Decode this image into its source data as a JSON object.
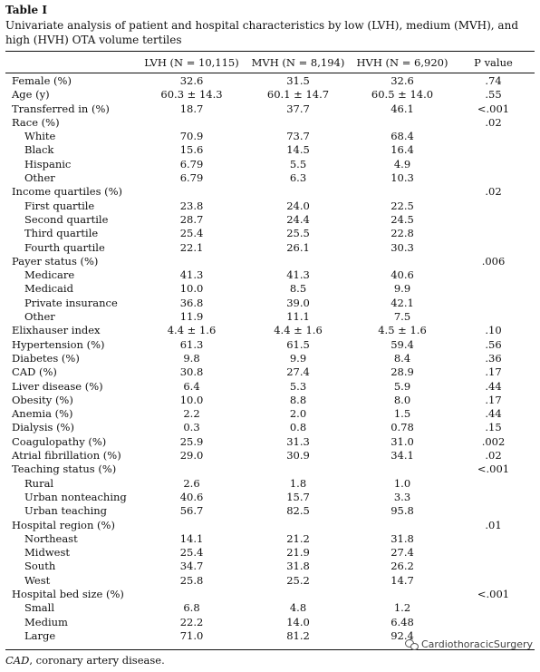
{
  "table_label": "Table I",
  "caption": "Univariate analysis of patient and hospital characteristics by low (LVH), medium (MVH), and high (HVH) OTA volume tertiles",
  "headers": {
    "c0": "",
    "c1": "LVH (N = 10,115)",
    "c2": "MVH (N = 8,194)",
    "c3": "HVH (N = 6,920)",
    "c4": "P value"
  },
  "rows": [
    {
      "label": "Female (%)",
      "lvh": "32.6",
      "mvh": "31.5",
      "hvh": "32.6",
      "p": ".74"
    },
    {
      "label": "Age (y)",
      "lvh": "60.3 ± 14.3",
      "mvh": "60.1 ± 14.7",
      "hvh": "60.5 ± 14.0",
      "p": ".55"
    },
    {
      "label": "Transferred in (%)",
      "lvh": "18.7",
      "mvh": "37.7",
      "hvh": "46.1",
      "p": "<.001"
    },
    {
      "label": "Race (%)",
      "lvh": "",
      "mvh": "",
      "hvh": "",
      "p": ".02"
    },
    {
      "label": "White",
      "lvh": "70.9",
      "mvh": "73.7",
      "hvh": "68.4",
      "p": "",
      "sub": true
    },
    {
      "label": "Black",
      "lvh": "15.6",
      "mvh": "14.5",
      "hvh": "16.4",
      "p": "",
      "sub": true
    },
    {
      "label": "Hispanic",
      "lvh": "6.79",
      "mvh": "5.5",
      "hvh": "4.9",
      "p": "",
      "sub": true
    },
    {
      "label": "Other",
      "lvh": "6.79",
      "mvh": "6.3",
      "hvh": "10.3",
      "p": "",
      "sub": true
    },
    {
      "label": "Income quartiles (%)",
      "lvh": "",
      "mvh": "",
      "hvh": "",
      "p": ".02"
    },
    {
      "label": "First quartile",
      "lvh": "23.8",
      "mvh": "24.0",
      "hvh": "22.5",
      "p": "",
      "sub": true
    },
    {
      "label": "Second quartile",
      "lvh": "28.7",
      "mvh": "24.4",
      "hvh": "24.5",
      "p": "",
      "sub": true
    },
    {
      "label": "Third quartile",
      "lvh": "25.4",
      "mvh": "25.5",
      "hvh": "22.8",
      "p": "",
      "sub": true
    },
    {
      "label": "Fourth quartile",
      "lvh": "22.1",
      "mvh": "26.1",
      "hvh": "30.3",
      "p": "",
      "sub": true
    },
    {
      "label": "Payer status (%)",
      "lvh": "",
      "mvh": "",
      "hvh": "",
      "p": ".006"
    },
    {
      "label": "Medicare",
      "lvh": "41.3",
      "mvh": "41.3",
      "hvh": "40.6",
      "p": "",
      "sub": true
    },
    {
      "label": "Medicaid",
      "lvh": "10.0",
      "mvh": "8.5",
      "hvh": "9.9",
      "p": "",
      "sub": true
    },
    {
      "label": "Private insurance",
      "lvh": "36.8",
      "mvh": "39.0",
      "hvh": "42.1",
      "p": "",
      "sub": true
    },
    {
      "label": "Other",
      "lvh": "11.9",
      "mvh": "11.1",
      "hvh": "7.5",
      "p": "",
      "sub": true
    },
    {
      "label": "Elixhauser index",
      "lvh": "4.4 ± 1.6",
      "mvh": "4.4 ± 1.6",
      "hvh": "4.5 ± 1.6",
      "p": ".10"
    },
    {
      "label": "Hypertension (%)",
      "lvh": "61.3",
      "mvh": "61.5",
      "hvh": "59.4",
      "p": ".56"
    },
    {
      "label": "Diabetes (%)",
      "lvh": "9.8",
      "mvh": "9.9",
      "hvh": "8.4",
      "p": ".36"
    },
    {
      "label": "CAD (%)",
      "lvh": "30.8",
      "mvh": "27.4",
      "hvh": "28.9",
      "p": ".17"
    },
    {
      "label": "Liver disease (%)",
      "lvh": "6.4",
      "mvh": "5.3",
      "hvh": "5.9",
      "p": ".44"
    },
    {
      "label": "Obesity (%)",
      "lvh": "10.0",
      "mvh": "8.8",
      "hvh": "8.0",
      "p": ".17"
    },
    {
      "label": "Anemia (%)",
      "lvh": "2.2",
      "mvh": "2.0",
      "hvh": "1.5",
      "p": ".44"
    },
    {
      "label": "Dialysis (%)",
      "lvh": "0.3",
      "mvh": "0.8",
      "hvh": "0.78",
      "p": ".15"
    },
    {
      "label": "Coagulopathy (%)",
      "lvh": "25.9",
      "mvh": "31.3",
      "hvh": "31.0",
      "p": ".002"
    },
    {
      "label": "Atrial fibrillation (%)",
      "lvh": "29.0",
      "mvh": "30.9",
      "hvh": "34.1",
      "p": ".02"
    },
    {
      "label": "Teaching status (%)",
      "lvh": "",
      "mvh": "",
      "hvh": "",
      "p": "<.001"
    },
    {
      "label": "Rural",
      "lvh": "2.6",
      "mvh": "1.8",
      "hvh": "1.0",
      "p": "",
      "sub": true
    },
    {
      "label": "Urban nonteaching",
      "lvh": "40.6",
      "mvh": "15.7",
      "hvh": "3.3",
      "p": "",
      "sub": true
    },
    {
      "label": "Urban teaching",
      "lvh": "56.7",
      "mvh": "82.5",
      "hvh": "95.8",
      "p": "",
      "sub": true
    },
    {
      "label": "Hospital region (%)",
      "lvh": "",
      "mvh": "",
      "hvh": "",
      "p": ".01"
    },
    {
      "label": "Northeast",
      "lvh": "14.1",
      "mvh": "21.2",
      "hvh": "31.8",
      "p": "",
      "sub": true
    },
    {
      "label": "Midwest",
      "lvh": "25.4",
      "mvh": "21.9",
      "hvh": "27.4",
      "p": "",
      "sub": true
    },
    {
      "label": "South",
      "lvh": "34.7",
      "mvh": "31.8",
      "hvh": "26.2",
      "p": "",
      "sub": true
    },
    {
      "label": "West",
      "lvh": "25.8",
      "mvh": "25.2",
      "hvh": "14.7",
      "p": "",
      "sub": true
    },
    {
      "label": "Hospital bed size (%)",
      "lvh": "",
      "mvh": "",
      "hvh": "",
      "p": "<.001"
    },
    {
      "label": "Small",
      "lvh": "6.8",
      "mvh": "4.8",
      "hvh": "1.2",
      "p": "",
      "sub": true
    },
    {
      "label": "Medium",
      "lvh": "22.2",
      "mvh": "14.0",
      "hvh": "6.48",
      "p": "",
      "sub": true
    },
    {
      "label": "Large",
      "lvh": "71.0",
      "mvh": "81.2",
      "hvh": "92.4",
      "p": "",
      "sub": true
    }
  ],
  "footnote": {
    "abbr": "CAD",
    "text": ", coronary artery disease."
  },
  "watermark": {
    "text": "CardiothoracicSurgery",
    "icon": "wechat-icon"
  }
}
